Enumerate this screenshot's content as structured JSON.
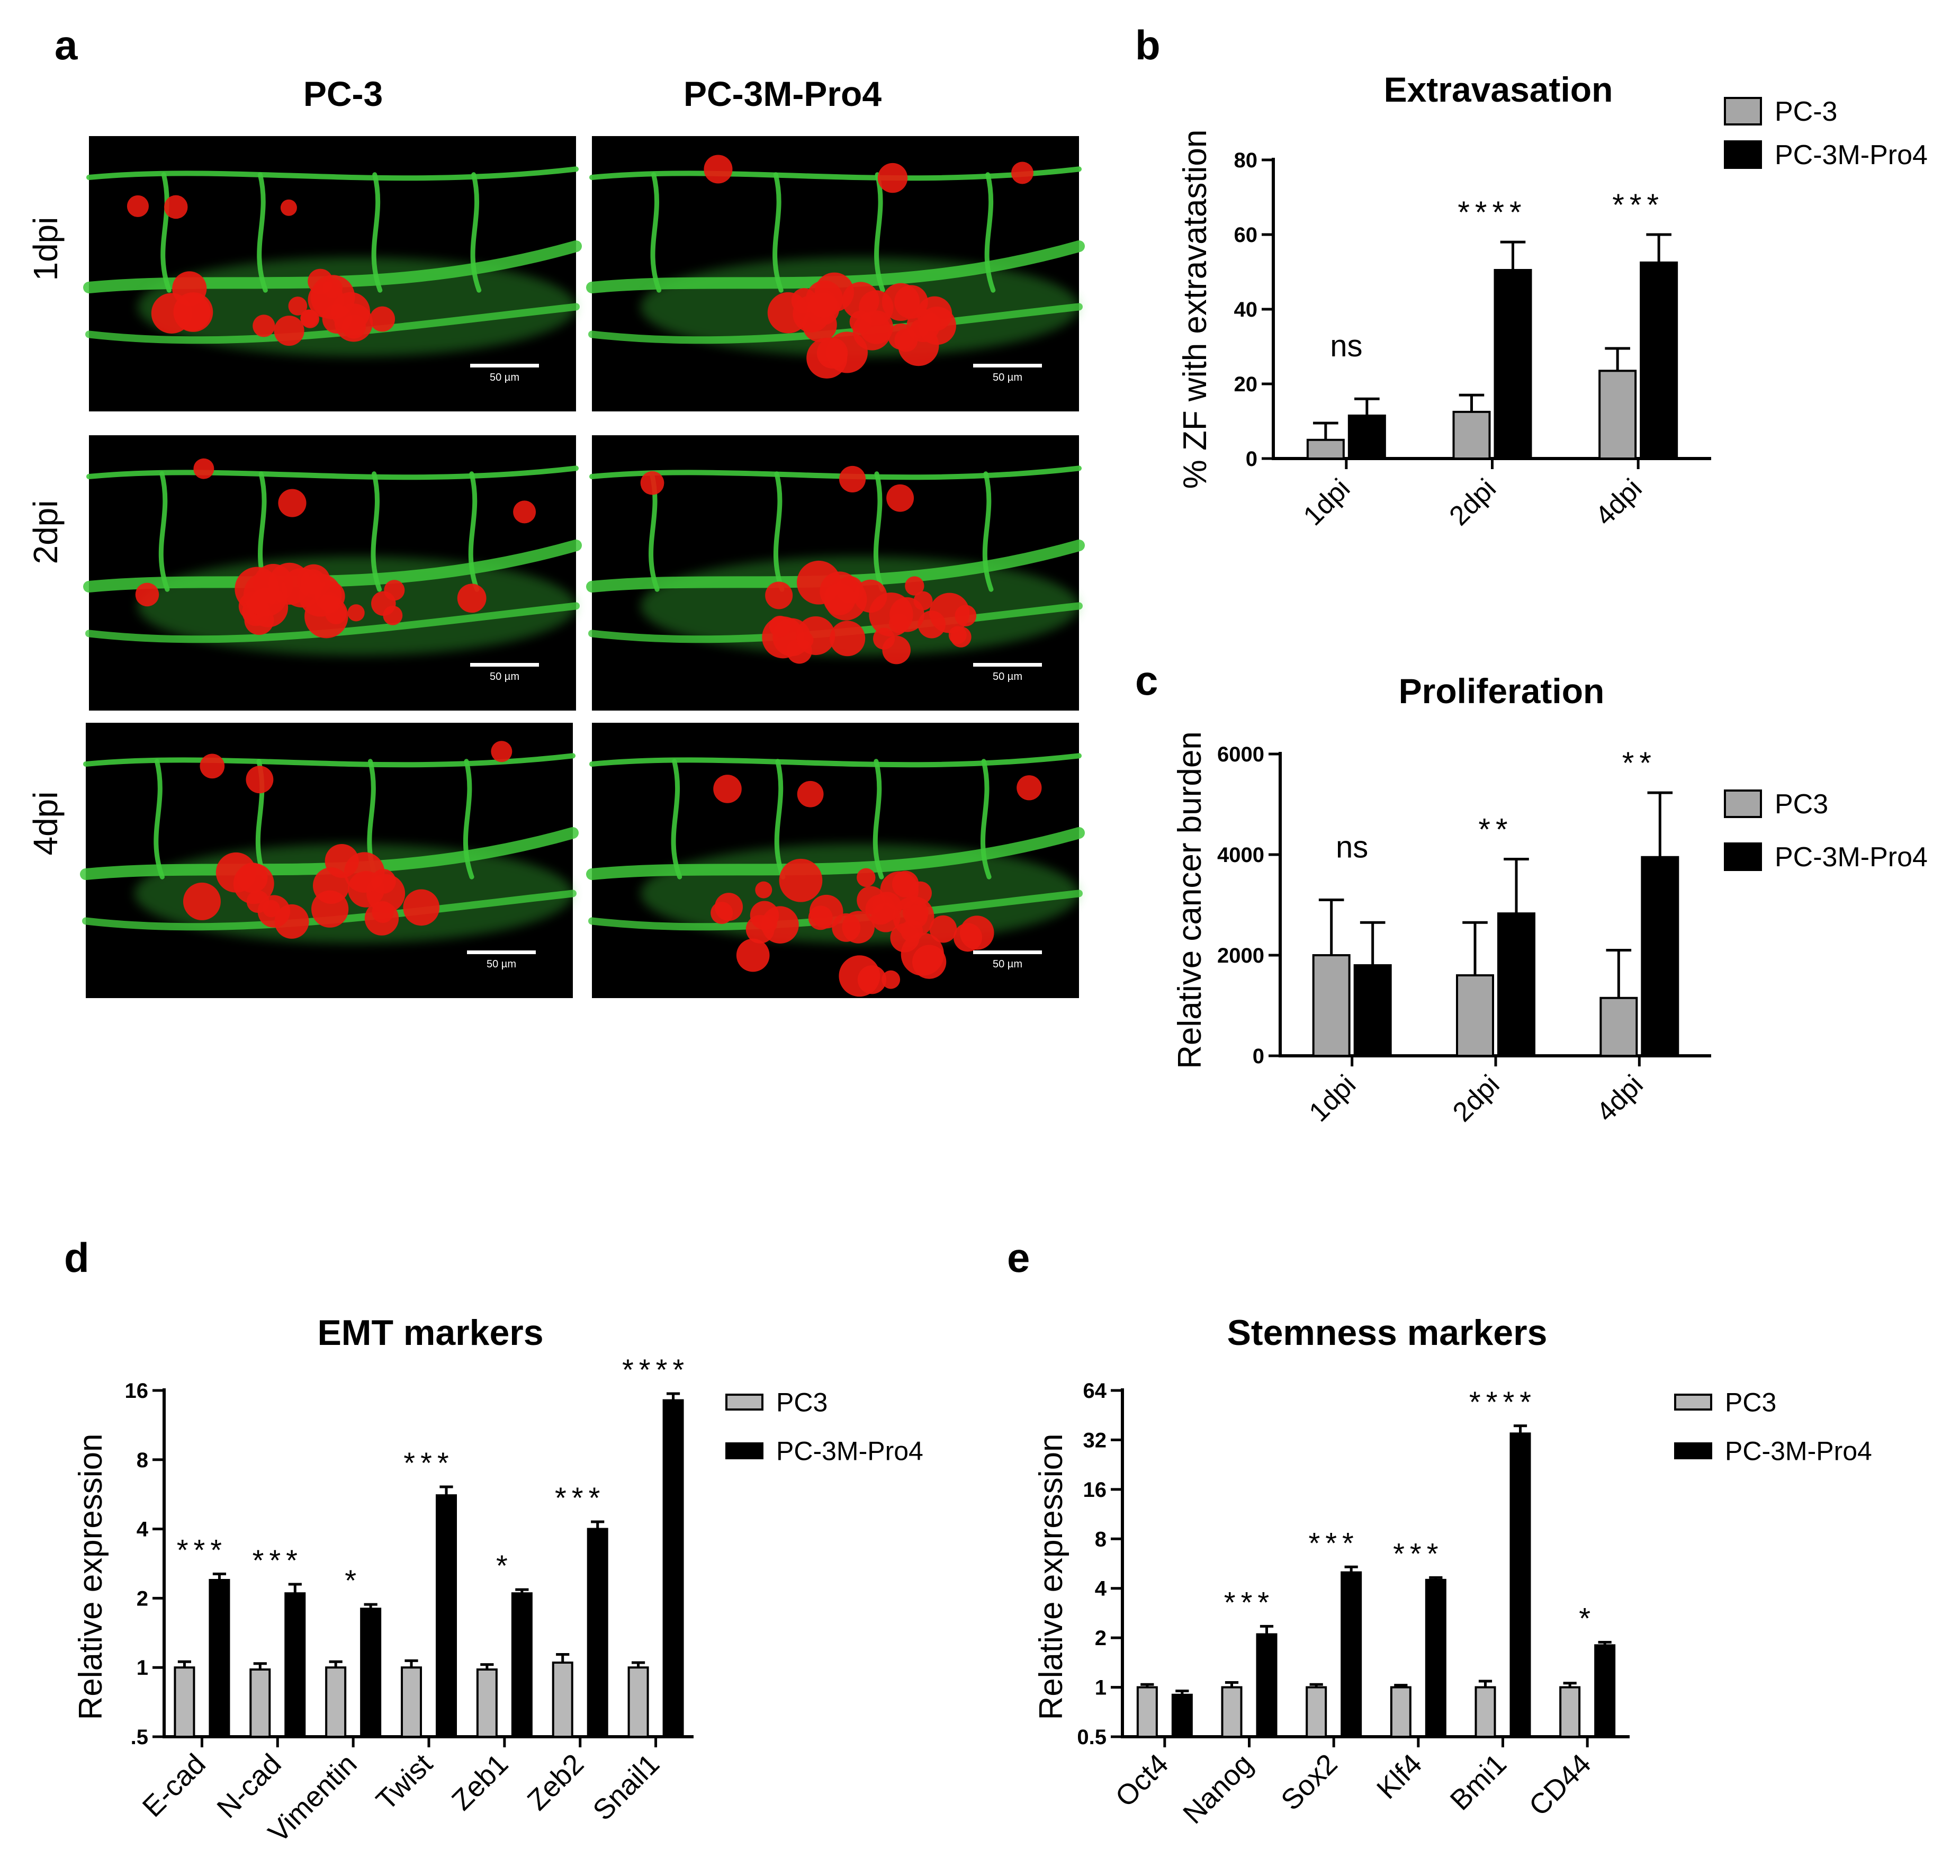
{
  "panel_letters": {
    "a": "a",
    "b": "b",
    "c": "c",
    "d": "d",
    "e": "e"
  },
  "micrographs": {
    "column_headers": [
      "PC-3",
      "PC-3M-Pro4"
    ],
    "row_labels": [
      "1dpi",
      "2dpi",
      "4dpi"
    ],
    "scale_bar_label": "50 µm",
    "colors": {
      "vessel": "#3ec83a",
      "tumor": "#e81a10",
      "background": "#000000"
    }
  },
  "chart_data": [
    {
      "id": "b",
      "type": "bar",
      "title": "Extravasation",
      "xlabel": "",
      "ylabel": "% ZF with extravatastion",
      "categories": [
        "1dpi",
        "2dpi",
        "4dpi"
      ],
      "ylim": [
        0,
        80
      ],
      "yticks": [
        0,
        20,
        40,
        60,
        80
      ],
      "yticklabels": [
        "0",
        "20",
        "40",
        "60",
        "80"
      ],
      "scale": "linear",
      "series": [
        {
          "name": "PC-3",
          "color": "#a6a6a6",
          "values": [
            5,
            12.5,
            23.5
          ],
          "errors": [
            4.5,
            4.5,
            6
          ]
        },
        {
          "name": "PC-3M-Pro4",
          "color": "#000000",
          "values": [
            11.5,
            50.5,
            52.5
          ],
          "errors": [
            4.5,
            7.5,
            7.5
          ]
        }
      ],
      "annotations": [
        "ns",
        "****",
        "***"
      ],
      "legend": {
        "position": "top-right",
        "labels": [
          "PC-3",
          "PC-3M-Pro4"
        ]
      }
    },
    {
      "id": "c",
      "type": "bar",
      "title": "Proliferation",
      "xlabel": "",
      "ylabel": "Relative cancer burden",
      "categories": [
        "1dpi",
        "2dpi",
        "4dpi"
      ],
      "ylim": [
        0,
        6000
      ],
      "yticks": [
        0,
        2000,
        4000,
        6000
      ],
      "yticklabels": [
        "0",
        "2000",
        "4000",
        "6000"
      ],
      "scale": "linear",
      "series": [
        {
          "name": "PC3",
          "color": "#a6a6a6",
          "values": [
            2000,
            1600,
            1150
          ],
          "errors": [
            1100,
            1050,
            950
          ]
        },
        {
          "name": "PC-3M-Pro4",
          "color": "#000000",
          "values": [
            1800,
            2830,
            3950
          ],
          "errors": [
            850,
            1080,
            1280
          ]
        }
      ],
      "annotations": [
        "ns",
        "**",
        "**"
      ],
      "legend": {
        "position": "right",
        "labels": [
          "PC3",
          "PC-3M-Pro4"
        ]
      }
    },
    {
      "id": "d",
      "type": "bar",
      "title": "EMT markers",
      "xlabel": "",
      "ylabel": "Relative expression",
      "categories": [
        "E-cad",
        "N-cad",
        "Vimentin",
        "Twist",
        "Zeb1",
        "Zeb2",
        "Snail1"
      ],
      "ylim": [
        0.5,
        16
      ],
      "yticks": [
        0.5,
        1,
        2,
        4,
        8,
        16
      ],
      "yticklabels": [
        ".5",
        "1",
        "2",
        "4",
        "8",
        "16"
      ],
      "scale": "log2",
      "series": [
        {
          "name": "PC3",
          "color": "#b8b8b8",
          "values": [
            1,
            0.98,
            1,
            1,
            0.98,
            1.05,
            1
          ],
          "errors": [
            0.06,
            0.06,
            0.06,
            0.07,
            0.05,
            0.09,
            0.05
          ]
        },
        {
          "name": "PC-3M-Pro4",
          "color": "#000000",
          "values": [
            2.4,
            2.1,
            1.8,
            5.6,
            2.1,
            4.0,
            14.5
          ],
          "errors": [
            0.15,
            0.2,
            0.08,
            0.5,
            0.08,
            0.3,
            1.0
          ]
        }
      ],
      "annotations": [
        "***",
        "***",
        "*",
        "***",
        "*",
        "***",
        "****"
      ],
      "legend": {
        "position": "right",
        "labels": [
          "PC3",
          "PC-3M-Pro4"
        ]
      }
    },
    {
      "id": "e",
      "type": "bar",
      "title": "Stemness markers",
      "xlabel": "",
      "ylabel": "Relative expression",
      "categories": [
        "Oct4",
        "Nanog",
        "Sox2",
        "Klf4",
        "Bmi1",
        "CD44"
      ],
      "ylim": [
        0.5,
        64
      ],
      "yticks": [
        0.5,
        1,
        2,
        4,
        8,
        16,
        32,
        64
      ],
      "yticklabels": [
        "0.5",
        "1",
        "2",
        "4",
        "8",
        "16",
        "32",
        "64"
      ],
      "scale": "log2",
      "series": [
        {
          "name": "PC3",
          "color": "#b8b8b8",
          "values": [
            1,
            1,
            1,
            1,
            1,
            1
          ],
          "errors": [
            0.04,
            0.07,
            0.04,
            0.03,
            0.09,
            0.06
          ]
        },
        {
          "name": "PC-3M-Pro4",
          "color": "#000000",
          "values": [
            0.9,
            2.1,
            5.0,
            4.5,
            35,
            1.8
          ],
          "errors": [
            0.05,
            0.25,
            0.4,
            0.15,
            4,
            0.08
          ]
        }
      ],
      "annotations": [
        "",
        "***",
        "***",
        "***",
        "****",
        "*"
      ],
      "legend": {
        "position": "right",
        "labels": [
          "PC3",
          "PC-3M-Pro4"
        ]
      }
    }
  ]
}
